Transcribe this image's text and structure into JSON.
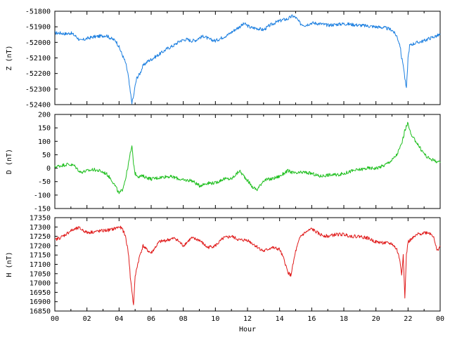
{
  "chart_data": [
    {
      "type": "line",
      "panel": "top",
      "ylabel": "Z (nT)",
      "ylim": [
        -52400,
        -51800
      ],
      "yticks": [
        -51800,
        -51900,
        -52000,
        -52100,
        -52200,
        -52300,
        -52400
      ],
      "color": "#1c7fe0",
      "xlim": [
        0,
        24
      ],
      "series": [
        {
          "x": [
            0,
            0.3,
            0.7,
            1.0,
            1.3,
            1.6,
            2.0,
            2.4,
            2.8,
            3.2,
            3.5,
            3.8,
            4.0,
            4.2,
            4.4,
            4.55,
            4.7,
            4.8,
            4.9,
            5.0,
            5.1,
            5.3,
            5.5,
            5.8,
            6.0,
            6.3,
            6.6,
            7.0,
            7.4,
            7.8,
            8.2,
            8.5,
            8.8,
            9.0,
            9.3,
            9.6,
            10.0,
            10.4,
            10.8,
            11.2,
            11.5,
            11.8,
            12.2,
            12.6,
            13.0,
            13.4,
            13.8,
            14.2,
            14.5,
            14.8,
            15.0,
            15.3,
            15.6,
            16.0,
            16.5,
            17.0,
            17.5,
            18.0,
            18.5,
            19.0,
            19.5,
            20.0,
            20.5,
            21.0,
            21.3,
            21.5,
            21.6,
            21.7,
            21.8,
            21.9,
            22.0,
            22.1,
            22.3,
            22.6,
            23.0,
            23.3,
            23.6,
            24.0
          ],
          "y": [
            -51940,
            -51940,
            -51945,
            -51940,
            -51960,
            -51990,
            -51975,
            -51965,
            -51960,
            -51955,
            -51975,
            -51990,
            -52030,
            -52080,
            -52130,
            -52200,
            -52320,
            -52385,
            -52350,
            -52280,
            -52230,
            -52200,
            -52150,
            -52120,
            -52110,
            -52090,
            -52070,
            -52040,
            -52020,
            -51990,
            -51980,
            -51990,
            -51985,
            -51970,
            -51960,
            -51980,
            -51990,
            -51970,
            -51950,
            -51920,
            -51900,
            -51880,
            -51905,
            -51910,
            -51920,
            -51890,
            -51870,
            -51855,
            -51850,
            -51830,
            -51840,
            -51880,
            -51890,
            -51875,
            -51880,
            -51890,
            -51885,
            -51880,
            -51885,
            -51890,
            -51895,
            -51900,
            -51905,
            -51920,
            -51960,
            -52020,
            -52100,
            -52140,
            -52230,
            -52300,
            -52100,
            -52020,
            -52010,
            -52000,
            -51990,
            -51975,
            -51965,
            -51950
          ]
        }
      ]
    },
    {
      "type": "line",
      "panel": "middle",
      "ylabel": "D (nT)",
      "ylim": [
        -150,
        200
      ],
      "yticks": [
        200,
        150,
        100,
        50,
        0,
        -50,
        -100,
        -150
      ],
      "color": "#1fbf1f",
      "xlim": [
        0,
        24
      ],
      "series": [
        {
          "x": [
            0,
            0.4,
            0.8,
            1.2,
            1.6,
            2.0,
            2.4,
            2.8,
            3.2,
            3.5,
            3.8,
            4.0,
            4.2,
            4.4,
            4.6,
            4.7,
            4.8,
            4.9,
            5.0,
            5.2,
            5.5,
            6.0,
            6.5,
            7.0,
            7.5,
            8.0,
            8.5,
            9.0,
            9.5,
            10.0,
            10.5,
            11.0,
            11.5,
            12.0,
            12.3,
            12.6,
            13.0,
            13.5,
            14.0,
            14.5,
            15.0,
            15.5,
            16.0,
            16.5,
            17.0,
            17.5,
            18.0,
            18.5,
            19.0,
            19.5,
            20.0,
            20.5,
            21.0,
            21.3,
            21.6,
            21.8,
            22.0,
            22.2,
            22.5,
            22.8,
            23.2,
            23.6,
            24.0
          ],
          "y": [
            5,
            10,
            15,
            10,
            -15,
            -10,
            -5,
            -10,
            -20,
            -40,
            -70,
            -95,
            -80,
            -40,
            20,
            55,
            80,
            20,
            -20,
            -30,
            -30,
            -40,
            -35,
            -30,
            -35,
            -45,
            -45,
            -65,
            -55,
            -55,
            -40,
            -40,
            -10,
            -45,
            -70,
            -80,
            -45,
            -40,
            -30,
            -10,
            -20,
            -15,
            -20,
            -30,
            -25,
            -25,
            -20,
            -10,
            -5,
            0,
            0,
            10,
            30,
            50,
            90,
            140,
            170,
            120,
            100,
            70,
            40,
            30,
            20
          ]
        }
      ]
    },
    {
      "type": "line",
      "panel": "bottom",
      "ylabel": "H (nT)",
      "xlabel": "Hour",
      "ylim": [
        16850,
        17350
      ],
      "yticks": [
        17350,
        17300,
        17250,
        17200,
        17150,
        17100,
        17050,
        17000,
        16950,
        16900,
        16850
      ],
      "xticks": [
        "00",
        "02",
        "04",
        "06",
        "08",
        "10",
        "12",
        "14",
        "16",
        "18",
        "20",
        "22",
        "00"
      ],
      "color": "#e01b1b",
      "xlim": [
        0,
        24
      ],
      "series": [
        {
          "x": [
            0,
            0.5,
            1.0,
            1.5,
            2.0,
            2.5,
            3.0,
            3.5,
            4.0,
            4.2,
            4.4,
            4.6,
            4.7,
            4.8,
            4.9,
            5.0,
            5.1,
            5.3,
            5.5,
            5.7,
            6.0,
            6.5,
            7.0,
            7.5,
            8.0,
            8.5,
            9.0,
            9.5,
            10.0,
            10.5,
            11.0,
            11.5,
            12.0,
            12.5,
            13.0,
            13.5,
            14.0,
            14.3,
            14.5,
            14.7,
            15.0,
            15.3,
            15.6,
            16.0,
            16.5,
            17.0,
            17.5,
            18.0,
            18.5,
            19.0,
            19.5,
            20.0,
            20.5,
            21.0,
            21.3,
            21.5,
            21.6,
            21.7,
            21.8,
            21.9,
            22.0,
            22.3,
            22.6,
            23.0,
            23.3,
            23.6,
            23.8,
            24.0
          ],
          "y": [
            17230,
            17250,
            17280,
            17295,
            17270,
            17275,
            17280,
            17285,
            17300,
            17290,
            17250,
            17150,
            17030,
            16960,
            16880,
            17030,
            17080,
            17150,
            17200,
            17180,
            17160,
            17220,
            17230,
            17240,
            17200,
            17240,
            17230,
            17190,
            17200,
            17240,
            17250,
            17230,
            17230,
            17200,
            17170,
            17190,
            17180,
            17120,
            17060,
            17040,
            17170,
            17250,
            17270,
            17290,
            17260,
            17250,
            17260,
            17260,
            17250,
            17250,
            17240,
            17220,
            17215,
            17210,
            17180,
            17120,
            17050,
            17150,
            16920,
            17150,
            17220,
            17240,
            17260,
            17270,
            17270,
            17250,
            17170,
            17200
          ]
        }
      ]
    }
  ]
}
